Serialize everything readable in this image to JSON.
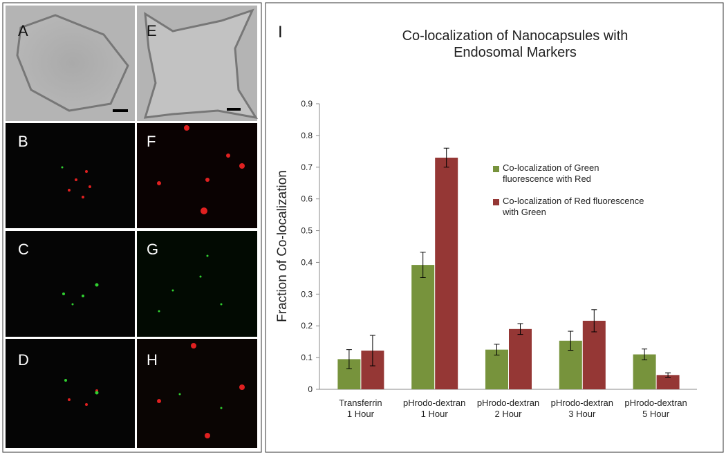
{
  "image_panels": [
    {
      "label": "A"
    },
    {
      "label": "B"
    },
    {
      "label": "C"
    },
    {
      "label": "D"
    },
    {
      "label": "E"
    },
    {
      "label": "F"
    },
    {
      "label": "G"
    },
    {
      "label": "H"
    }
  ],
  "chart_data": {
    "type": "bar",
    "panel_label": "I",
    "title": "Co-localization of Nanocapsules with\nEndosomal Markers",
    "y_label": "Fraction of Co-localization",
    "categories": [
      "Transferrin\n1 Hour",
      "pHrodo-dextran\n1 Hour",
      "pHrodo-dextran\n2 Hour",
      "pHrodo-dextran\n3 Hour",
      "pHrodo-dextran\n5 Hour"
    ],
    "series": [
      {
        "name": "Co-localization of Green\nfluorescence with Red",
        "color": "#77933c",
        "values": [
          0.095,
          0.392,
          0.125,
          0.153,
          0.11
        ],
        "errors": [
          0.03,
          0.04,
          0.017,
          0.03,
          0.017
        ]
      },
      {
        "name": "Co-localization of Red fluorescence\nwith Green",
        "color": "#953735",
        "values": [
          0.122,
          0.73,
          0.19,
          0.216,
          0.045
        ],
        "errors": [
          0.048,
          0.03,
          0.017,
          0.035,
          0.007
        ]
      }
    ],
    "ylim": [
      0,
      0.9
    ],
    "yticks": [
      0,
      0.1,
      0.2,
      0.3,
      0.4,
      0.5,
      0.6,
      0.7,
      0.8,
      0.9
    ],
    "grid": false
  }
}
